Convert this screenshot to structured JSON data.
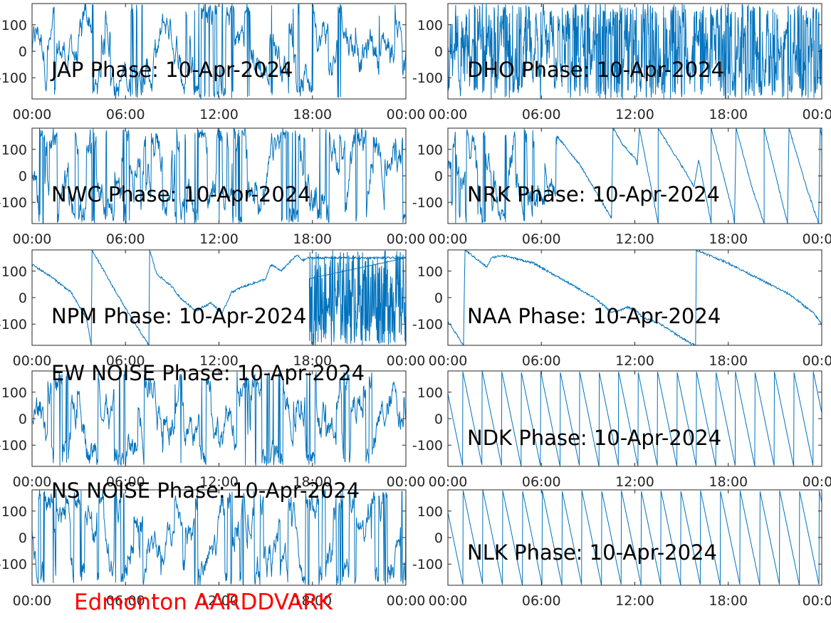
{
  "footer": {
    "text": "Edmonton AARDDVARK",
    "color": "#ff0000"
  },
  "style": {
    "trace_color": "#0072bd",
    "axis_color": "#262626",
    "background": "#ffffff"
  },
  "chart_data": [
    {
      "type": "line",
      "title": "JAP Phase: 10-Apr-2024",
      "pattern": "noise",
      "x_ticks": [
        "00:00",
        "06:00",
        "12:00",
        "18:00",
        "00:00"
      ],
      "y_ticks": [
        "100",
        "0",
        "-100"
      ],
      "xlim": [
        0,
        24
      ],
      "ylim": [
        -180,
        180
      ],
      "xunit": "hours",
      "yunit": "degrees",
      "series": [
        {
          "keys": []
        }
      ]
    },
    {
      "type": "line",
      "title": "DHO Phase: 10-Apr-2024",
      "pattern": "noise_dense",
      "x_ticks": [
        "00:00",
        "06:00",
        "12:00",
        "18:00",
        "00:00"
      ],
      "y_ticks": [
        "100",
        "0",
        "-100"
      ],
      "xlim": [
        0,
        24
      ],
      "ylim": [
        -180,
        180
      ],
      "xunit": "hours",
      "yunit": "degrees",
      "series": [
        {
          "keys": []
        }
      ]
    },
    {
      "type": "line",
      "title": "NWC Phase: 10-Apr-2024",
      "pattern": "noise",
      "x_ticks": [
        "00:00",
        "06:00",
        "12:00",
        "18:00",
        "00:00"
      ],
      "y_ticks": [
        "100",
        "0",
        "-100"
      ],
      "xlim": [
        0,
        24
      ],
      "ylim": [
        -180,
        180
      ],
      "xunit": "hours",
      "yunit": "degrees",
      "series": [
        {
          "keys": []
        }
      ]
    },
    {
      "type": "line",
      "title": "NRK Phase: 10-Apr-2024",
      "pattern": "mixed",
      "x_ticks": [
        "00:00",
        "06:00",
        "12:00",
        "18:00",
        "00:00"
      ],
      "y_ticks": [
        "100",
        "0",
        "-100"
      ],
      "xlim": [
        0,
        24
      ],
      "ylim": [
        -180,
        180
      ],
      "xunit": "hours",
      "yunit": "degrees",
      "series": [
        {
          "keys": [
            [
              7.0,
              150
            ],
            [
              8.5,
              40
            ],
            [
              9.5,
              -60
            ],
            [
              10.5,
              -160
            ],
            [
              10.6,
              180
            ],
            [
              11.2,
              120
            ],
            [
              12.1,
              60
            ],
            [
              12.15,
              40
            ],
            [
              12.3,
              180
            ],
            [
              13.5,
              -180
            ],
            [
              13.5,
              180
            ],
            [
              15.2,
              20
            ],
            [
              15.8,
              -40
            ],
            [
              16.1,
              60
            ],
            [
              16.9,
              -180
            ],
            [
              16.9,
              180
            ],
            [
              18.3,
              -140
            ],
            [
              18.4,
              -180
            ],
            [
              18.5,
              180
            ],
            [
              19.5,
              -40
            ],
            [
              20.3,
              -180
            ],
            [
              20.3,
              180
            ],
            [
              21.8,
              -180
            ],
            [
              21.9,
              180
            ],
            [
              23.0,
              -40
            ],
            [
              23.8,
              -180
            ],
            [
              23.9,
              180
            ],
            [
              24,
              150
            ]
          ]
        }
      ]
    },
    {
      "type": "line",
      "title": "NPM Phase: 10-Apr-2024",
      "pattern": "mixed",
      "x_ticks": [
        "00:00",
        "06:00",
        "12:00",
        "18:00",
        "00:00"
      ],
      "y_ticks": [
        "100",
        "0",
        "-100"
      ],
      "xlim": [
        0,
        24
      ],
      "ylim": [
        -180,
        180
      ],
      "xunit": "hours",
      "yunit": "degrees",
      "series": [
        {
          "keys": [
            [
              0.0,
              125
            ],
            [
              1.2,
              80
            ],
            [
              2.5,
              20
            ],
            [
              3.5,
              -80
            ],
            [
              3.8,
              -180
            ],
            [
              3.85,
              180
            ],
            [
              5.0,
              60
            ],
            [
              6.2,
              -60
            ],
            [
              7.5,
              -180
            ],
            [
              7.55,
              180
            ],
            [
              8.0,
              90
            ],
            [
              9.0,
              40
            ],
            [
              9.5,
              0
            ],
            [
              10.5,
              -50
            ],
            [
              11.5,
              -20
            ],
            [
              12.2,
              -60
            ],
            [
              12.8,
              20
            ],
            [
              13.5,
              40
            ],
            [
              14.0,
              50
            ],
            [
              14.5,
              60
            ],
            [
              15.0,
              70
            ],
            [
              15.3,
              120
            ],
            [
              15.5,
              120
            ],
            [
              16.0,
              100
            ],
            [
              16.3,
              120
            ],
            [
              17.0,
              160
            ],
            [
              17.4,
              140
            ],
            [
              17.7,
              150
            ],
            [
              24,
              150
            ]
          ]
        }
      ]
    },
    {
      "type": "line",
      "title": "NAA Phase: 10-Apr-2024",
      "pattern": "smooth",
      "x_ticks": [
        "00:00",
        "06:00",
        "12:00",
        "18:00",
        "00:00"
      ],
      "y_ticks": [
        "100",
        "0",
        "-100"
      ],
      "xlim": [
        0,
        24
      ],
      "ylim": [
        -180,
        180
      ],
      "xunit": "hours",
      "yunit": "degrees",
      "series": [
        {
          "keys": [
            [
              0.0,
              -90
            ],
            [
              1.0,
              -180
            ],
            [
              1.1,
              180
            ],
            [
              2.5,
              115
            ],
            [
              2.8,
              150
            ],
            [
              3.5,
              160
            ],
            [
              5.5,
              130
            ],
            [
              7.0,
              80
            ],
            [
              8.5,
              30
            ],
            [
              9.5,
              -5
            ],
            [
              10.5,
              -55
            ],
            [
              11.0,
              -50
            ],
            [
              11.5,
              -35
            ],
            [
              12.0,
              -45
            ],
            [
              12.5,
              -75
            ],
            [
              13.5,
              -95
            ],
            [
              15.5,
              -170
            ],
            [
              15.9,
              -180
            ],
            [
              15.95,
              180
            ],
            [
              18.0,
              130
            ],
            [
              20.0,
              70
            ],
            [
              22.0,
              10
            ],
            [
              23.5,
              -60
            ],
            [
              24,
              -100
            ]
          ]
        }
      ]
    },
    {
      "type": "line",
      "title": "EW NOISE Phase: 10-Apr-2024",
      "pattern": "noise",
      "x_ticks": [
        "00:00",
        "06:00",
        "12:00",
        "18:00",
        "00:00"
      ],
      "y_ticks": [
        "100",
        "0",
        "-100"
      ],
      "xlim": [
        0,
        24
      ],
      "ylim": [
        -180,
        180
      ],
      "xunit": "hours",
      "yunit": "degrees",
      "series": [
        {
          "keys": []
        }
      ]
    },
    {
      "type": "line",
      "title": "NDK Phase: 10-Apr-2024",
      "pattern": "sawtooth",
      "x_ticks": [
        "00:00",
        "06:00",
        "12:00",
        "18:00",
        "00:00"
      ],
      "y_ticks": [
        "100",
        "0",
        "-100"
      ],
      "xlim": [
        0,
        24
      ],
      "ylim": [
        -180,
        180
      ],
      "xunit": "hours",
      "yunit": "degrees",
      "series": [
        {
          "keys": []
        }
      ]
    },
    {
      "type": "line",
      "title": "NS NOISE Phase: 10-Apr-2024",
      "pattern": "noise",
      "x_ticks": [
        "00:00",
        "06:00",
        "12:00",
        "18:00",
        "00:00"
      ],
      "y_ticks": [
        "100",
        "0",
        "-100"
      ],
      "xlim": [
        0,
        24
      ],
      "ylim": [
        -180,
        180
      ],
      "xunit": "hours",
      "yunit": "degrees",
      "series": [
        {
          "keys": []
        }
      ]
    },
    {
      "type": "line",
      "title": "NLK Phase: 10-Apr-2024",
      "pattern": "sawtooth",
      "x_ticks": [
        "00:00",
        "06:00",
        "12:00",
        "18:00",
        "00:00"
      ],
      "y_ticks": [
        "100",
        "0",
        "-100"
      ],
      "xlim": [
        0,
        24
      ],
      "ylim": [
        -180,
        180
      ],
      "xunit": "hours",
      "yunit": "degrees",
      "series": [
        {
          "keys": []
        }
      ]
    }
  ]
}
